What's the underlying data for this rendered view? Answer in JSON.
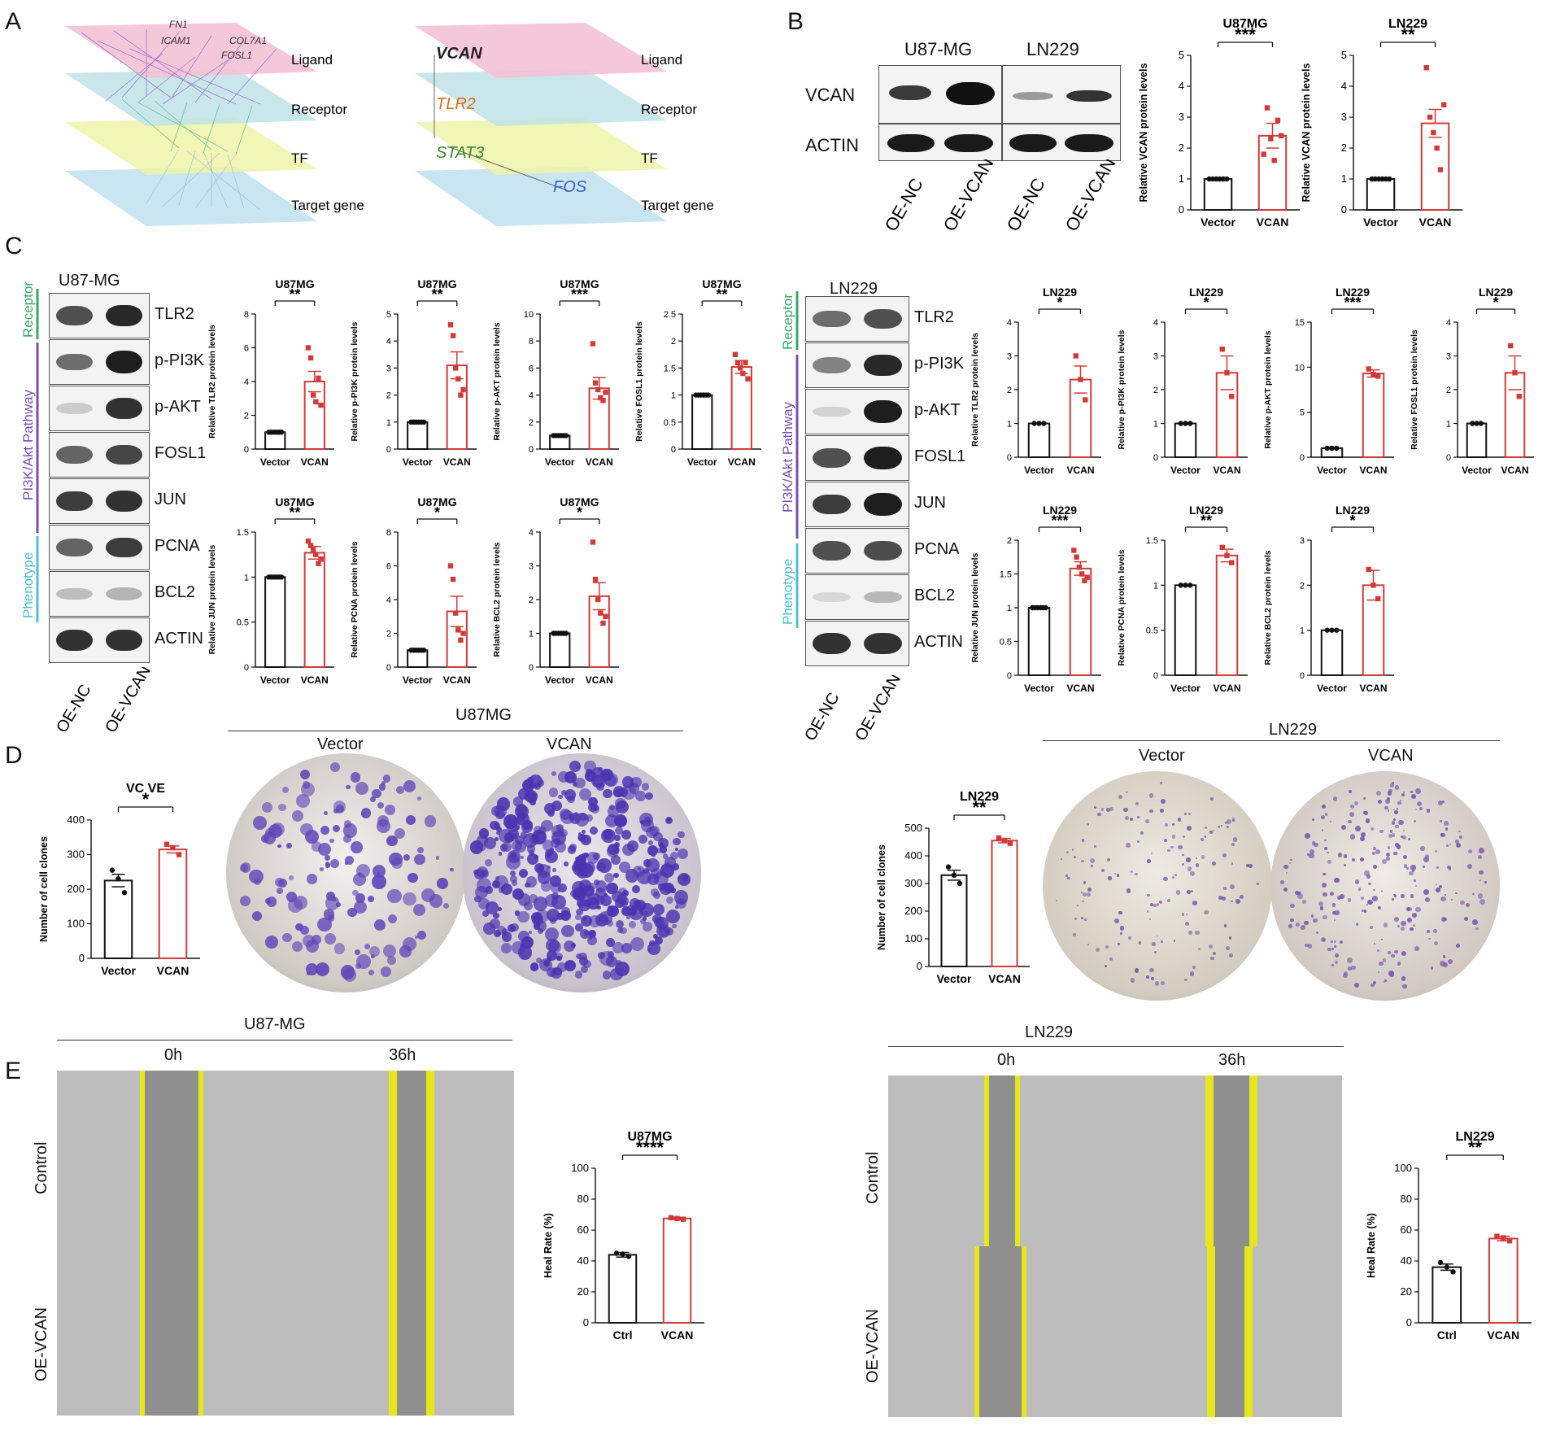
{
  "panels": {
    "A": "A",
    "B": "B",
    "C": "C",
    "D": "D",
    "E": "E"
  },
  "panelA": {
    "layers": [
      "Ligand",
      "Receptor",
      "TF",
      "Target gene"
    ],
    "left_genes": [
      "FN1",
      "ICAM1",
      "COL7A1",
      "FOSL1"
    ],
    "right_genes": {
      "ligand": "VCAN",
      "receptor": "TLR2",
      "tf": "STAT3",
      "target": "FOS"
    }
  },
  "panelB": {
    "cells": [
      "U87-MG",
      "LN229"
    ],
    "proteins": [
      "VCAN",
      "ACTIN"
    ],
    "lanes": [
      "OE-NC",
      "OE-VCAN",
      "OE-NC",
      "OE-VCAN"
    ]
  },
  "panelC": {
    "u87": {
      "title": "U87-MG",
      "proteins": [
        "TLR2",
        "p-PI3K",
        "p-AKT",
        "FOSL1",
        "JUN",
        "PCNA",
        "BCL2",
        "ACTIN"
      ],
      "lanes": [
        "OE-NC",
        "OE-VCAN"
      ]
    },
    "ln229": {
      "title": "LN229",
      "proteins": [
        "TLR2",
        "p-PI3K",
        "p-AKT",
        "FOSL1",
        "JUN",
        "PCNA",
        "BCL2",
        "ACTIN"
      ],
      "lanes": [
        "OE-NC",
        "OE-VCAN"
      ]
    },
    "categories": {
      "receptor": "Receptor",
      "pathway": "PI3K/Akt Pathway",
      "phenotype": "Phenotype"
    }
  },
  "panelD": {
    "u87_header": "U87MG",
    "ln229_header": "LN229",
    "conditions": [
      "Vector",
      "VCAN"
    ]
  },
  "panelE": {
    "u87_header": "U87-MG",
    "ln229_header": "LN229",
    "times": [
      "0h",
      "36h"
    ],
    "rows": [
      "Control",
      "OE-VCAN"
    ]
  },
  "chart_data": [
    {
      "id": "B1",
      "type": "bar",
      "title": "U87MG",
      "ylabel": "Relative VCAN protein levels",
      "categories": [
        "Vector",
        "VCAN"
      ],
      "values": [
        1.0,
        2.4
      ],
      "errors": [
        0,
        0.4
      ],
      "ylim": [
        0,
        5
      ],
      "yticks": [
        0,
        1,
        2,
        3,
        4,
        5
      ],
      "sig": "***",
      "points": [
        [
          1,
          1,
          1,
          1,
          1,
          1
        ],
        [
          1.8,
          3.3,
          2.3,
          1.6,
          2.9,
          2.4
        ]
      ]
    },
    {
      "id": "B2",
      "type": "bar",
      "title": "LN229",
      "ylabel": "Relative VCAN protein levels",
      "categories": [
        "Vector",
        "VCAN"
      ],
      "values": [
        1.0,
        2.8
      ],
      "errors": [
        0,
        0.45
      ],
      "ylim": [
        0,
        5
      ],
      "yticks": [
        0,
        1,
        2,
        3,
        4,
        5
      ],
      "sig": "**",
      "points": [
        [
          1,
          1,
          1,
          1,
          1,
          1
        ],
        [
          4.6,
          3.0,
          2.5,
          2.0,
          1.3,
          3.4
        ]
      ]
    },
    {
      "id": "CU1",
      "type": "bar",
      "title": "U87MG",
      "ylabel": "Relative TLR2 protein levels",
      "categories": [
        "Vector",
        "VCAN"
      ],
      "values": [
        1.0,
        4.0
      ],
      "errors": [
        0,
        0.6
      ],
      "ylim": [
        0,
        8
      ],
      "yticks": [
        0,
        2,
        4,
        6,
        8
      ],
      "sig": "**",
      "points": [
        [
          1,
          1,
          1,
          1,
          1,
          1
        ],
        [
          6.0,
          5.4,
          3.2,
          2.8,
          4.2,
          2.6
        ]
      ]
    },
    {
      "id": "CU2",
      "type": "bar",
      "title": "U87MG",
      "ylabel": "Relative p-PI3K protein levels",
      "categories": [
        "Vector",
        "VCAN"
      ],
      "values": [
        1.0,
        3.1
      ],
      "errors": [
        0,
        0.5
      ],
      "ylim": [
        0,
        5
      ],
      "yticks": [
        0,
        1,
        2,
        3,
        4,
        5
      ],
      "sig": "**",
      "points": [
        [
          1,
          1,
          1,
          1,
          1,
          1
        ],
        [
          4.6,
          4.2,
          3.0,
          2.6,
          2.0,
          2.2
        ]
      ]
    },
    {
      "id": "CU3",
      "type": "bar",
      "title": "U87MG",
      "ylabel": "Relative p-AKT protein levels",
      "categories": [
        "Vector",
        "VCAN"
      ],
      "values": [
        1.0,
        4.5
      ],
      "errors": [
        0,
        0.8
      ],
      "ylim": [
        0,
        10
      ],
      "yticks": [
        0,
        2,
        4,
        6,
        8,
        10
      ],
      "sig": "***",
      "points": [
        [
          1,
          1,
          1,
          1,
          1,
          1
        ],
        [
          7.8,
          4.9,
          4.4,
          3.8,
          3.6,
          4.2
        ]
      ]
    },
    {
      "id": "CU4",
      "type": "bar",
      "title": "U87MG",
      "ylabel": "Relative FOSL1 protein levels",
      "categories": [
        "Vector",
        "VCAN"
      ],
      "values": [
        1.0,
        1.52
      ],
      "errors": [
        0,
        0.12
      ],
      "ylim": [
        0,
        2.5
      ],
      "yticks": [
        0,
        0.5,
        1.0,
        1.5,
        2.0,
        2.5
      ],
      "sig": "**",
      "points": [
        [
          1,
          1,
          1,
          1,
          1,
          1
        ],
        [
          1.75,
          1.6,
          1.5,
          1.4,
          1.6,
          1.3
        ]
      ]
    },
    {
      "id": "CU5",
      "type": "bar",
      "title": "U87MG",
      "ylabel": "Relative JUN protein levels",
      "categories": [
        "Vector",
        "VCAN"
      ],
      "values": [
        1.0,
        1.27
      ],
      "errors": [
        0,
        0.07
      ],
      "ylim": [
        0,
        1.5
      ],
      "yticks": [
        0,
        0.5,
        1.0,
        1.5
      ],
      "sig": "**",
      "points": [
        [
          1,
          1,
          1,
          1,
          1,
          1
        ],
        [
          1.4,
          1.35,
          1.3,
          1.25,
          1.15,
          1.2
        ]
      ]
    },
    {
      "id": "CU6",
      "type": "bar",
      "title": "U87MG",
      "ylabel": "Relative PCNA protein levels",
      "categories": [
        "Vector",
        "VCAN"
      ],
      "values": [
        1.0,
        3.3
      ],
      "errors": [
        0,
        0.9
      ],
      "ylim": [
        0,
        8
      ],
      "yticks": [
        0,
        2,
        4,
        6,
        8
      ],
      "sig": "*",
      "points": [
        [
          1,
          1,
          1,
          1,
          1,
          1
        ],
        [
          6.0,
          5.2,
          3.2,
          2.2,
          1.6,
          2.0
        ]
      ]
    },
    {
      "id": "CU7",
      "type": "bar",
      "title": "U87MG",
      "ylabel": "Relative BCL2 protein levels",
      "categories": [
        "Vector",
        "VCAN"
      ],
      "values": [
        1.0,
        2.1
      ],
      "errors": [
        0,
        0.4
      ],
      "ylim": [
        0,
        4
      ],
      "yticks": [
        0,
        1,
        2,
        3,
        4
      ],
      "sig": "*",
      "points": [
        [
          1,
          1,
          1,
          1,
          1,
          1
        ],
        [
          3.7,
          2.6,
          2.0,
          1.6,
          1.3,
          1.5
        ]
      ]
    },
    {
      "id": "CL1",
      "type": "bar",
      "title": "LN229",
      "ylabel": "Relative TLR2 protein levels",
      "categories": [
        "Vector",
        "VCAN"
      ],
      "values": [
        1.0,
        2.3
      ],
      "errors": [
        0,
        0.4
      ],
      "ylim": [
        0,
        4
      ],
      "yticks": [
        0,
        1,
        2,
        3,
        4
      ],
      "sig": "*",
      "points": [
        [
          1,
          1,
          1
        ],
        [
          3.0,
          2.3,
          1.7
        ]
      ]
    },
    {
      "id": "CL2",
      "type": "bar",
      "title": "LN229",
      "ylabel": "Relative p-PI3K protein levels",
      "categories": [
        "Vector",
        "VCAN"
      ],
      "values": [
        1.0,
        2.5
      ],
      "errors": [
        0,
        0.5
      ],
      "ylim": [
        0,
        4
      ],
      "yticks": [
        0,
        1,
        2,
        3,
        4
      ],
      "sig": "*",
      "points": [
        [
          1,
          1,
          1
        ],
        [
          3.2,
          2.5,
          1.8
        ]
      ]
    },
    {
      "id": "CL3",
      "type": "bar",
      "title": "LN229",
      "ylabel": "Relative p-AKT protein levels",
      "categories": [
        "Vector",
        "VCAN"
      ],
      "values": [
        1.0,
        9.3
      ],
      "errors": [
        0,
        0.4
      ],
      "ylim": [
        0,
        15
      ],
      "yticks": [
        0,
        5,
        10,
        15
      ],
      "sig": "***",
      "points": [
        [
          1,
          1,
          1
        ],
        [
          9.8,
          9.2,
          9.0
        ]
      ]
    },
    {
      "id": "CL4",
      "type": "bar",
      "title": "LN229",
      "ylabel": "Relative FOSL1 protein levels",
      "categories": [
        "Vector",
        "VCAN"
      ],
      "values": [
        1.0,
        2.5
      ],
      "errors": [
        0,
        0.5
      ],
      "ylim": [
        0,
        4
      ],
      "yticks": [
        0,
        1,
        2,
        3,
        4
      ],
      "sig": "*",
      "points": [
        [
          1,
          1,
          1
        ],
        [
          3.3,
          2.5,
          1.8
        ]
      ]
    },
    {
      "id": "CL5",
      "type": "bar",
      "title": "LN229",
      "ylabel": "Relative JUN protein levels",
      "categories": [
        "Vector",
        "VCAN"
      ],
      "values": [
        1.0,
        1.58
      ],
      "errors": [
        0,
        0.1
      ],
      "ylim": [
        0,
        2.0
      ],
      "yticks": [
        0,
        0.5,
        1.0,
        1.5,
        2.0
      ],
      "sig": "***",
      "points": [
        [
          1,
          1,
          1,
          1,
          1,
          1
        ],
        [
          1.85,
          1.75,
          1.6,
          1.5,
          1.4,
          1.45
        ]
      ]
    },
    {
      "id": "CL6",
      "type": "bar",
      "title": "LN229",
      "ylabel": "Relative PCNA protein levels",
      "categories": [
        "Vector",
        "VCAN"
      ],
      "values": [
        1.0,
        1.33
      ],
      "errors": [
        0,
        0.07
      ],
      "ylim": [
        0,
        1.5
      ],
      "yticks": [
        0,
        0.5,
        1.0,
        1.5
      ],
      "sig": "**",
      "points": [
        [
          1,
          1,
          1
        ],
        [
          1.42,
          1.33,
          1.25
        ]
      ]
    },
    {
      "id": "CL7",
      "type": "bar",
      "title": "LN229",
      "ylabel": "Relative BCL2 protein levels",
      "categories": [
        "Vector",
        "VCAN"
      ],
      "values": [
        1.0,
        2.0
      ],
      "errors": [
        0,
        0.33
      ],
      "ylim": [
        0,
        3
      ],
      "yticks": [
        0,
        1,
        2,
        3
      ],
      "sig": "*",
      "points": [
        [
          1,
          1,
          1
        ],
        [
          2.35,
          2.0,
          1.7
        ]
      ]
    },
    {
      "id": "D1",
      "type": "bar",
      "title": "VC VE",
      "ylabel": "Number of cell clones",
      "categories": [
        "Vector",
        "VCAN"
      ],
      "values": [
        225,
        315
      ],
      "errors": [
        18,
        10
      ],
      "ylim": [
        0,
        400
      ],
      "yticks": [
        0,
        100,
        200,
        300,
        400
      ],
      "sig": "*",
      "points": [
        [
          255,
          230,
          190
        ],
        [
          330,
          320,
          300
        ]
      ]
    },
    {
      "id": "D2",
      "type": "bar",
      "title": "LN229",
      "ylabel": "Number of cell clones",
      "categories": [
        "Vector",
        "VCAN"
      ],
      "values": [
        330,
        455
      ],
      "errors": [
        18,
        8
      ],
      "ylim": [
        0,
        500
      ],
      "yticks": [
        0,
        100,
        200,
        300,
        400,
        500
      ],
      "sig": "**",
      "points": [
        [
          360,
          330,
          300
        ],
        [
          465,
          455,
          445
        ]
      ]
    },
    {
      "id": "E1",
      "type": "bar",
      "title": "U87MG",
      "ylabel": "Heal Rate (%)",
      "categories": [
        "Ctrl",
        "VCAN"
      ],
      "values": [
        44,
        67.5
      ],
      "errors": [
        1.5,
        0.8
      ],
      "ylim": [
        0,
        100
      ],
      "yticks": [
        0,
        20,
        40,
        60,
        80,
        100
      ],
      "sig": "****",
      "points": [
        [
          45,
          44.5,
          43
        ],
        [
          68,
          67.5,
          67
        ]
      ]
    },
    {
      "id": "E2",
      "type": "bar",
      "title": "LN229",
      "ylabel": "Heal Rate (%)",
      "categories": [
        "Ctrl",
        "VCAN"
      ],
      "values": [
        36,
        54.5
      ],
      "errors": [
        2,
        1.5
      ],
      "ylim": [
        0,
        100
      ],
      "yticks": [
        0,
        20,
        40,
        60,
        80,
        100
      ],
      "sig": "**",
      "points": [
        [
          39,
          36,
          33
        ],
        [
          56,
          55,
          53
        ]
      ]
    }
  ]
}
